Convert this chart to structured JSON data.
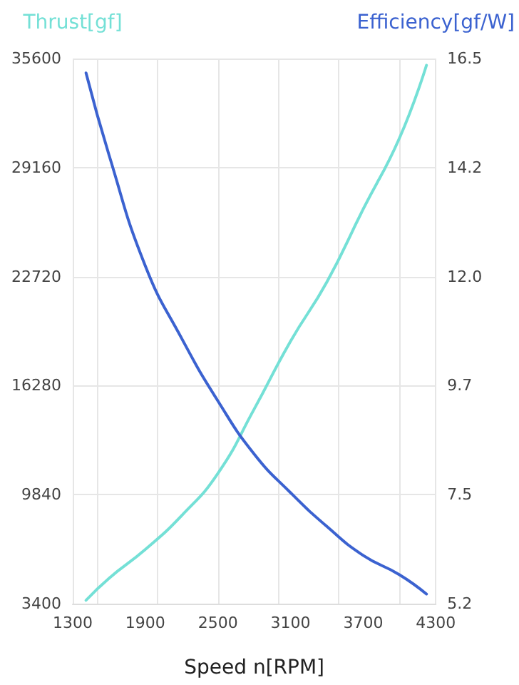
{
  "chart_data": {
    "type": "line",
    "xlabel": "Speed n[RPM]",
    "ylabel": "Thrust[gf]",
    "y2label": "Efficiency[gf/W]",
    "x": [
      1410,
      1600,
      1900,
      2200,
      2500,
      2800,
      3100,
      3400,
      3700,
      4000,
      4223
    ],
    "series": [
      {
        "color": "#74e0d6",
        "values": [
          3600,
          4900,
          6600,
          8600,
          11100,
          14900,
          18900,
          22400,
          26700,
          30900,
          35200
        ]
      },
      {
        "color": "#3b62d0",
        "axis": "y2",
        "values": [
          16.2,
          14.5,
          12.2,
          10.7,
          9.4,
          8.3,
          7.5,
          6.8,
          6.2,
          5.8,
          5.4
        ]
      }
    ],
    "xlim": [
      1300,
      4300
    ],
    "xticks": [
      1300,
      1900,
      2500,
      3100,
      3700,
      4300
    ],
    "ylim": [
      3400,
      35600
    ],
    "yticks": [
      3400,
      9840,
      16280,
      22720,
      29160,
      35600
    ],
    "y2lim": [
      5.2,
      16.5
    ],
    "y2ticks": [
      5.2,
      {
        "value": 7.46,
        "label": "7.5"
      },
      {
        "value": 9.72,
        "label": "9.7"
      },
      {
        "value": 11.98,
        "label": "12.0"
      },
      {
        "value": 14.24,
        "label": "14.2"
      },
      16.5
    ],
    "grid": true,
    "marker": "none",
    "line_style": "solid"
  }
}
